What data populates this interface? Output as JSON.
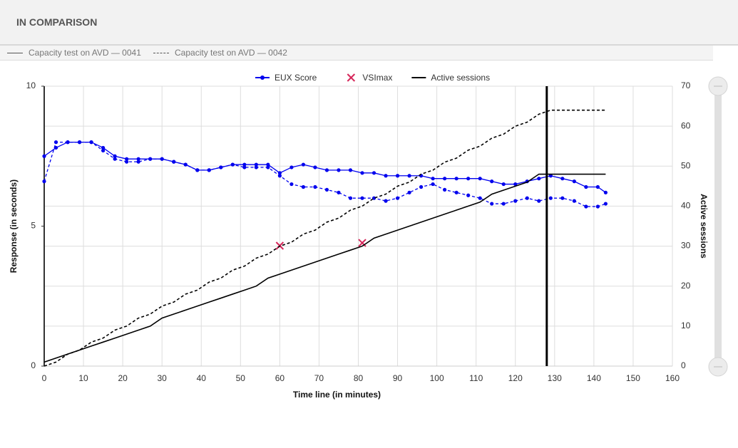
{
  "header": {
    "title": "IN COMPARISON"
  },
  "chart_data": {
    "type": "line",
    "tests": [
      "Capacity test on AVD — 0041",
      "Capacity test on AVD — 0042"
    ],
    "line_styles": [
      "solid",
      "dashed"
    ],
    "x_label": "Time line (in minutes)",
    "y_label": "Response (in seconds)",
    "y2_label": "Active sessions",
    "xlim": [
      0,
      160
    ],
    "xticks": [
      0,
      10,
      20,
      30,
      40,
      50,
      60,
      70,
      80,
      90,
      100,
      110,
      120,
      130,
      140,
      150,
      160
    ],
    "ylim": [
      0,
      10
    ],
    "yticks": [
      0,
      5,
      10
    ],
    "y2lim": [
      0,
      70
    ],
    "y2ticks": [
      0,
      10,
      20,
      30,
      40,
      50,
      60,
      70
    ],
    "grid": true,
    "marker_x": 128,
    "x": [
      0,
      3,
      6,
      9,
      12,
      15,
      18,
      21,
      24,
      27,
      30,
      33,
      36,
      39,
      42,
      45,
      48,
      51,
      54,
      57,
      60,
      63,
      66,
      69,
      72,
      75,
      78,
      81,
      84,
      87,
      90,
      93,
      96,
      99,
      102,
      105,
      108,
      111,
      114,
      117,
      120,
      123,
      126,
      129,
      132,
      135,
      138,
      141,
      143
    ],
    "series": [
      {
        "name": "EUX Score",
        "color": "#0000ee",
        "style": "line-dots",
        "values_by_test": [
          [
            7.5,
            7.8,
            8.0,
            8.0,
            8.0,
            7.8,
            7.5,
            7.4,
            7.4,
            7.4,
            7.4,
            7.3,
            7.2,
            7.0,
            7.0,
            7.1,
            7.2,
            7.2,
            7.2,
            7.2,
            6.9,
            7.1,
            7.2,
            7.1,
            7.0,
            7.0,
            7.0,
            6.9,
            6.9,
            6.8,
            6.8,
            6.8,
            6.8,
            6.7,
            6.7,
            6.7,
            6.7,
            6.7,
            6.6,
            6.5,
            6.5,
            6.6,
            6.7,
            6.8,
            6.7,
            6.6,
            6.4,
            6.4,
            6.2
          ],
          [
            6.6,
            8.0,
            8.0,
            8.0,
            8.0,
            7.7,
            7.4,
            7.3,
            7.3,
            7.4,
            7.4,
            7.3,
            7.2,
            7.0,
            7.0,
            7.1,
            7.2,
            7.1,
            7.1,
            7.1,
            6.8,
            6.5,
            6.4,
            6.4,
            6.3,
            6.2,
            6.0,
            6.0,
            6.0,
            5.9,
            6.0,
            6.2,
            6.4,
            6.5,
            6.3,
            6.2,
            6.1,
            6.0,
            5.8,
            5.8,
            5.9,
            6.0,
            5.9,
            6.0,
            6.0,
            5.9,
            5.7,
            5.7,
            5.8
          ]
        ]
      },
      {
        "name": "VSImax",
        "color": "#d6275a",
        "style": "cross",
        "points_by_test": [
          {
            "x": 81,
            "y": 4.4
          },
          {
            "x": 60,
            "y": 4.3
          }
        ]
      },
      {
        "name": "Active sessions",
        "color": "#000000",
        "style": "line",
        "axis": "y2",
        "values_by_test": [
          [
            1,
            2,
            3,
            4,
            5,
            6,
            7,
            8,
            9,
            10,
            12,
            13,
            14,
            15,
            16,
            17,
            18,
            19,
            20,
            22,
            23,
            24,
            25,
            26,
            27,
            28,
            29,
            30,
            32,
            33,
            34,
            35,
            36,
            37,
            38,
            39,
            40,
            41,
            43,
            44,
            45,
            46,
            48,
            48,
            48,
            48,
            48,
            48,
            48
          ],
          [
            0,
            1,
            3,
            4,
            6,
            7,
            9,
            10,
            12,
            13,
            15,
            16,
            18,
            19,
            21,
            22,
            24,
            25,
            27,
            28,
            30,
            31,
            33,
            34,
            36,
            37,
            39,
            40,
            42,
            43,
            45,
            46,
            48,
            49,
            51,
            52,
            54,
            55,
            57,
            58,
            60,
            61,
            63,
            64,
            64,
            64,
            64,
            64,
            64
          ]
        ]
      }
    ]
  }
}
